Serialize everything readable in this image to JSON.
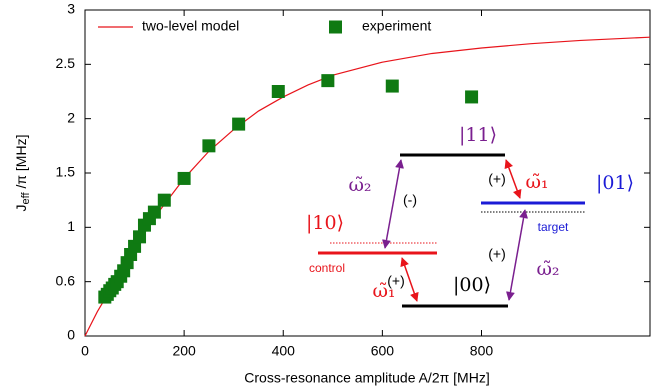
{
  "chart_data": {
    "type": "scatter",
    "xlabel": "Cross-resonance amplitude A/2π [MHz]",
    "ylabel": "J",
    "ylabel_sub": "eff",
    "ylabel_rest": " /π [MHz]",
    "xlim": [
      0,
      1140
    ],
    "xticks": [
      0,
      200,
      400,
      600,
      800
    ],
    "ylim": [
      0,
      3
    ],
    "yticks": [
      0,
      0.6,
      1,
      1.5,
      2,
      2.5,
      3
    ],
    "legend": "top-left",
    "series": [
      {
        "name": "two-level model",
        "kind": "line",
        "color": "#e8141b",
        "x": [
          0,
          25,
          50,
          75,
          100,
          150,
          200,
          250,
          300,
          350,
          400,
          450,
          500,
          600,
          700,
          800,
          900,
          1000,
          1140
        ],
        "values": [
          0,
          0.27,
          0.5,
          0.68,
          0.85,
          1.15,
          1.45,
          1.7,
          1.9,
          2.07,
          2.2,
          2.31,
          2.4,
          2.52,
          2.6,
          2.65,
          2.69,
          2.72,
          2.75
        ]
      },
      {
        "name": "experiment",
        "kind": "points",
        "color": "#0f7a12",
        "x": [
          40,
          45,
          50,
          55,
          60,
          65,
          72,
          78,
          85,
          92,
          100,
          110,
          120,
          130,
          140,
          160,
          200,
          250,
          310,
          390,
          490,
          620,
          780
        ],
        "values": [
          0.43,
          0.46,
          0.5,
          0.53,
          0.57,
          0.6,
          0.64,
          0.68,
          0.74,
          0.8,
          0.86,
          0.93,
          1.02,
          1.08,
          1.14,
          1.25,
          1.45,
          1.75,
          1.95,
          2.25,
          2.35,
          2.3,
          2.2
        ]
      }
    ]
  },
  "inset": {
    "level_11": "|11⟩",
    "level_10": "|10⟩",
    "level_01": "|01⟩",
    "level_00": "|00⟩",
    "control": "control",
    "target": "target",
    "minus": "(-)",
    "plus_a": "(+)",
    "plus_b": "(+)",
    "plus_c": "(+)",
    "omega2_a": "ω̃₂",
    "omega1_a": "ω̃₁",
    "omega1_b": "ω̃₁",
    "omega2_b": "ω̃₂"
  }
}
